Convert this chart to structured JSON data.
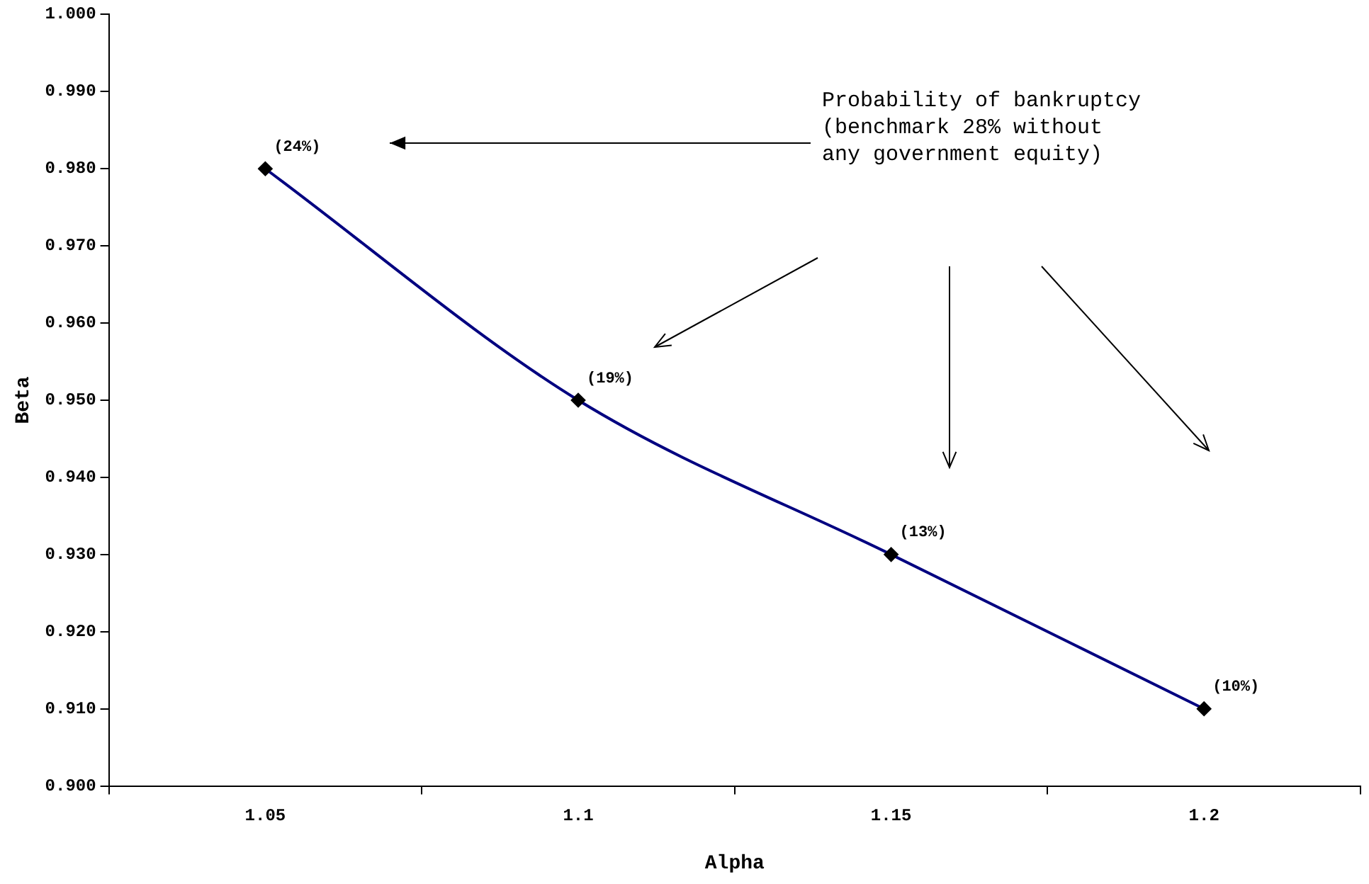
{
  "chart_data": {
    "type": "line",
    "xlabel": "Alpha",
    "ylabel": "Beta",
    "categories": [
      "1.05",
      "1.1",
      "1.15",
      "1.2"
    ],
    "series": [
      {
        "color": "#000080",
        "values": [
          0.98,
          0.95,
          0.93,
          0.91
        ]
      }
    ],
    "ylim": [
      0.9,
      1.0
    ],
    "yticks": [
      {
        "value": 0.9,
        "label": "0.900"
      },
      {
        "value": 0.91,
        "label": "0.910"
      },
      {
        "value": 0.92,
        "label": "0.920"
      },
      {
        "value": 0.93,
        "label": "0.930"
      },
      {
        "value": 0.94,
        "label": "0.940"
      },
      {
        "value": 0.95,
        "label": "0.950"
      },
      {
        "value": 0.96,
        "label": "0.960"
      },
      {
        "value": 0.97,
        "label": "0.970"
      },
      {
        "value": 0.98,
        "label": "0.980"
      },
      {
        "value": 0.99,
        "label": "0.990"
      },
      {
        "value": 1.0,
        "label": "1.000"
      }
    ],
    "marker": "diamond",
    "line_style": "solid",
    "legend": false,
    "annotations": [
      "Probability of bankruptcy\n(benchmark 28% without\nany government equity)",
      {
        "text": "(24%)",
        "x": "1.05",
        "y": 0.98
      },
      {
        "text": "(19%)",
        "x": "1.1",
        "y": 0.95
      },
      {
        "text": "(13%)",
        "x": "1.15",
        "y": 0.93
      },
      {
        "text": "(10%)",
        "x": "1.2",
        "y": 0.91
      }
    ]
  }
}
